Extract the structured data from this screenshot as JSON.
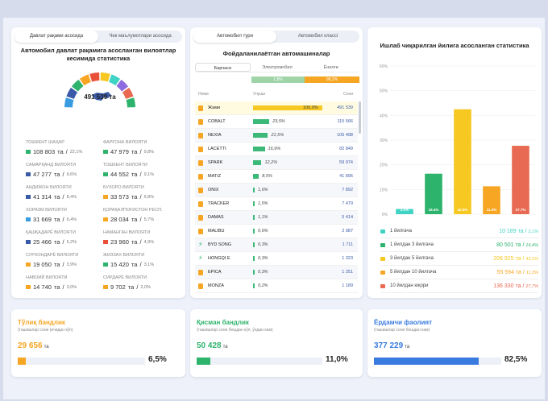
{
  "left_panel": {
    "tabs": [
      "Давлат рақами асосида",
      "Чек маълумотлари асосида"
    ],
    "title": "Автомобил давлат рақамига асосланган вилоятлар кесимида статистика",
    "total": "491 539 та",
    "unit": "та",
    "regions": [
      {
        "name": "ТОШКЕНТ ШАҲАР",
        "value": "108 803",
        "pct": "22,1%",
        "color": "#2db36b"
      },
      {
        "name": "ФАРҒОНА ВИЛОЯТИ",
        "value": "47 979",
        "pct": "9,8%",
        "color": "#2db36b"
      },
      {
        "name": "САМАРҚАНД ВИЛОЯТИ",
        "value": "47 277",
        "pct": "9,6%",
        "color": "#3a5aa8"
      },
      {
        "name": "ТОШКЕНТ ВИЛОЯТИ",
        "value": "44 552",
        "pct": "9,1%",
        "color": "#2db36b"
      },
      {
        "name": "АНДИЖОН ВИЛОЯТИ",
        "value": "41 314",
        "pct": "8,4%",
        "color": "#3a5aa8"
      },
      {
        "name": "БУХОРО ВИЛОЯТИ",
        "value": "33 573",
        "pct": "6,8%",
        "color": "#f6a623"
      },
      {
        "name": "ХОРАЗМ ВИЛОЯТИ",
        "value": "31 669",
        "pct": "6,4%",
        "color": "#3a9be0"
      },
      {
        "name": "ҚОРАҚАЛПОҒИСТОН РЕСП.",
        "value": "28 034",
        "pct": "5,7%",
        "color": "#f6a623"
      },
      {
        "name": "ҚАШҚАДАРЁ ВИЛОЯТИ",
        "value": "25 466",
        "pct": "5,2%",
        "color": "#3a5aa8"
      },
      {
        "name": "НАМАНГАН ВИЛОЯТИ",
        "value": "23 960",
        "pct": "4,9%",
        "color": "#e8503a"
      },
      {
        "name": "СУРХОНДАРЁ ВИЛОЯТИ",
        "value": "19 050",
        "pct": "3,9%",
        "color": "#f6a623"
      },
      {
        "name": "ЖИЗЗАХ ВИЛОЯТИ",
        "value": "15 420",
        "pct": "3,1%",
        "color": "#2db36b"
      },
      {
        "name": "НАВОИЙ ВИЛОЯТИ",
        "value": "14 740",
        "pct": "3,0%",
        "color": "#f6a623"
      },
      {
        "name": "СИРДАРЁ ВИЛОЯТИ",
        "value": "9 702",
        "pct": "2,0%",
        "color": "#f6a623"
      }
    ]
  },
  "mid_panel": {
    "tabs": [
      "Автомобил тури",
      "Автомобил классi"
    ],
    "title": "Фойдаланилаётган автомашиналар",
    "filter_tabs": [
      "Барчаси",
      "Электромобил",
      "Ёнилғи"
    ],
    "electro_pct": "1,8%",
    "fuel_pct": "98,2%",
    "columns": [
      "Номи",
      "Улуши",
      "Сони"
    ],
    "rows": [
      {
        "name": "Жами",
        "share": "100,0%",
        "share_num": 100,
        "count": "491 539",
        "icon": "fuel"
      },
      {
        "name": "COBALT",
        "share": "23,5%",
        "share_num": 23.5,
        "count": "115 566",
        "icon": "fuel"
      },
      {
        "name": "NEXIA",
        "share": "21,5%",
        "share_num": 21.5,
        "count": "105 498",
        "icon": "fuel"
      },
      {
        "name": "LACETTI",
        "share": "16,9%",
        "share_num": 16.9,
        "count": "82 849",
        "icon": "fuel"
      },
      {
        "name": "SPARK",
        "share": "12,2%",
        "share_num": 12.2,
        "count": "59 974",
        "icon": "fuel"
      },
      {
        "name": "MATIZ",
        "share": "8,5%",
        "share_num": 8.5,
        "count": "41 896",
        "icon": "fuel"
      },
      {
        "name": "ONIX",
        "share": "1,6%",
        "share_num": 1.6,
        "count": "7 892",
        "icon": "fuel"
      },
      {
        "name": "TRACKER",
        "share": "1,5%",
        "share_num": 1.5,
        "count": "7 479",
        "icon": "fuel"
      },
      {
        "name": "DAMAS",
        "share": "1,1%",
        "share_num": 1.1,
        "count": "5 414",
        "icon": "fuel"
      },
      {
        "name": "MALIBU",
        "share": "0,6%",
        "share_num": 0.6,
        "count": "2 987",
        "icon": "fuel"
      },
      {
        "name": "BYD SONG",
        "share": "0,3%",
        "share_num": 0.3,
        "count": "1 711",
        "icon": "electric"
      },
      {
        "name": "HONGQI E",
        "share": "0,3%",
        "share_num": 0.3,
        "count": "1 323",
        "icon": "electric"
      },
      {
        "name": "EPICA",
        "share": "0,3%",
        "share_num": 0.3,
        "count": "1 251",
        "icon": "fuel"
      },
      {
        "name": "MONZA",
        "share": "0,2%",
        "share_num": 0.2,
        "count": "1 189",
        "icon": "fuel"
      }
    ]
  },
  "right_panel": {
    "title": "Ишлаб чиқарилган йилига асосланган статистика"
  },
  "chart_data": {
    "type": "bar",
    "categories": [
      "1 йилгача",
      "1 йилдан 3 йилгача",
      "3 йилдан 5 йилгача",
      "5 йилдан 10 йилгача",
      "10 йилдан юқори"
    ],
    "values": [
      2.1,
      16.4,
      42.5,
      11.3,
      27.7
    ],
    "value_labels": [
      "2.1%",
      "16.4%",
      "42.5%",
      "11.3%",
      "27.7%"
    ],
    "counts": [
      "10 189",
      "80 501",
      "208 925",
      "55 594",
      "136 330"
    ],
    "pcts": [
      "2,1%",
      "16,4%",
      "42,5%",
      "11,3%",
      "27,7%"
    ],
    "colors": [
      "#3fd3c4",
      "#2db36b",
      "#f6c821",
      "#f6a623",
      "#e86a52"
    ],
    "yticks": [
      0,
      10,
      20,
      30,
      40,
      50,
      60
    ],
    "ytick_labels": [
      "0%",
      "10%",
      "20%",
      "30%",
      "40%",
      "50%",
      "60%"
    ],
    "ylim": [
      0,
      60
    ],
    "unit": "та"
  },
  "cards": [
    {
      "title": "Тўлиқ бандлик",
      "subtitle": "(ташишлар сони (ичидан кўп)",
      "value": "29 656",
      "unit": "та",
      "pct": "6,5%",
      "pct_num": 6.5,
      "color": "#f6a623"
    },
    {
      "title": "Қисман бандлик",
      "subtitle": "(ташишлар сони бешдан кўп, ўндан кам)",
      "value": "50 428",
      "unit": "та",
      "pct": "11,0%",
      "pct_num": 11.0,
      "color": "#2db36b"
    },
    {
      "title": "Ёрдамчи фаолият",
      "subtitle": "(ташишлар сони бешдан кам)",
      "value": "377 229",
      "unit": "та",
      "pct": "82,5%",
      "pct_num": 82.5,
      "color": "#3a7be0"
    }
  ]
}
